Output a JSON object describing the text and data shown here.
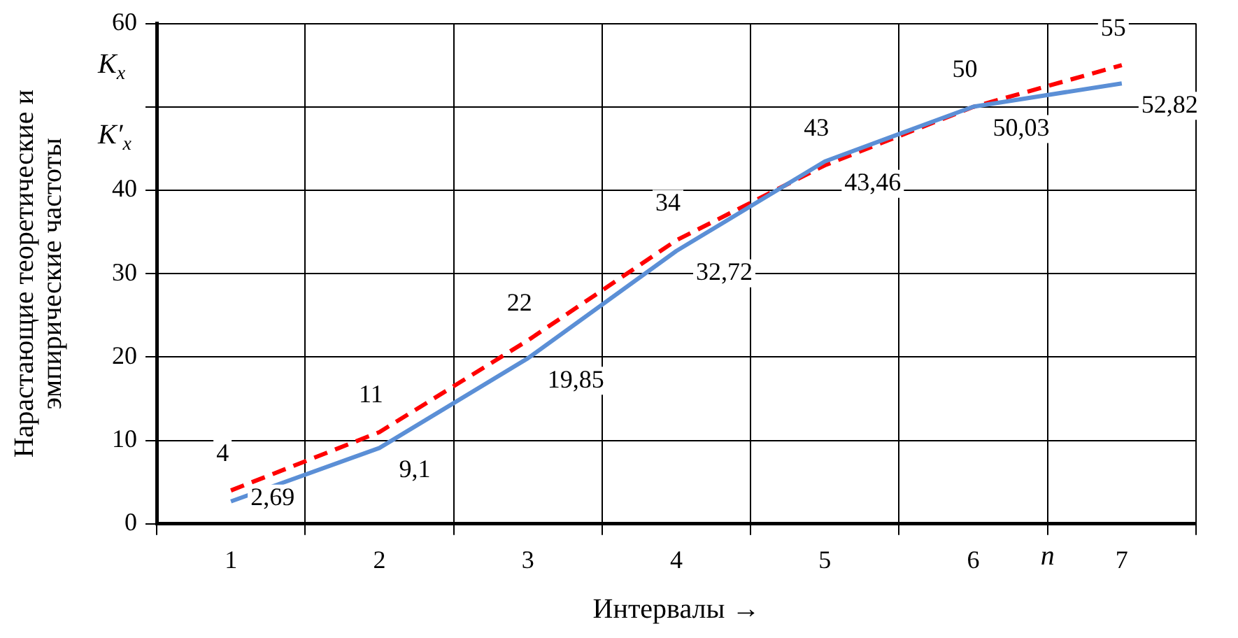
{
  "chart_data": {
    "type": "line",
    "xlabel": "Интервалы →",
    "ylabel": "Нарастающие теоретические и эмпирические частоты",
    "categories": [
      "1",
      "2",
      "3",
      "4",
      "5",
      "6",
      "7"
    ],
    "series": [
      {
        "color": "#5b8fd6",
        "values": [
          2.69,
          9.1,
          19.85,
          32.72,
          43.46,
          50.03,
          52.82
        ],
        "value_labels": [
          "2,69",
          "9,1",
          "19,85",
          "32,72",
          "43,46",
          "50,03",
          "52,82"
        ],
        "line_style": "solid"
      },
      {
        "color": "#ff0000",
        "values": [
          4,
          11,
          22,
          34,
          43,
          50,
          55
        ],
        "value_labels": [
          "4",
          "11",
          "22",
          "34",
          "43",
          "50",
          "55"
        ],
        "line_style": "dashed"
      }
    ],
    "ylim": [
      0,
      60
    ],
    "yticks": [
      0,
      10,
      20,
      30,
      40,
      {
        "value": 50,
        "label": null
      },
      60
    ],
    "annotations": [
      "K$_{x}$",
      "K′$_{x}$",
      "n"
    ],
    "grid": true,
    "legend": false,
    "marker": "none"
  }
}
